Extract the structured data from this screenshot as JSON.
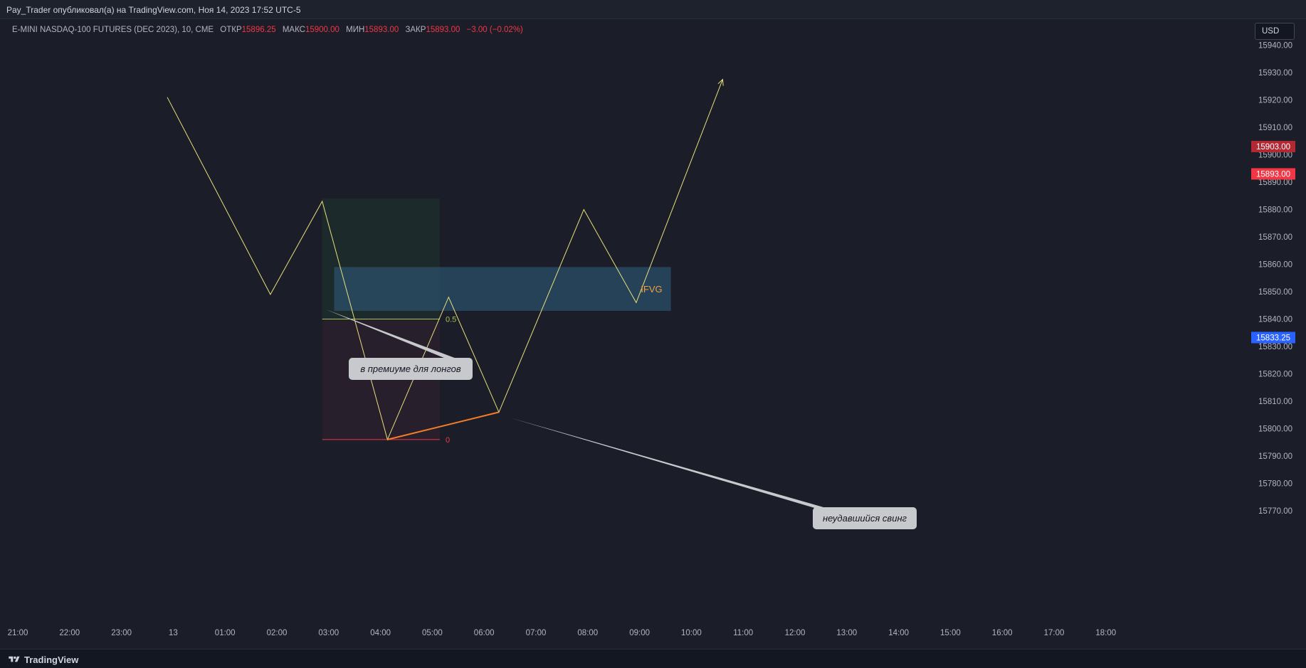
{
  "header": {
    "published_text": "Pay_Trader опубликовал(а) на TradingView.com, Ноя 14, 2023 17:52 UTC-5"
  },
  "legend": {
    "symbol": "E-MINI NASDAQ-100 FUTURES (DEC 2023), 10, CME",
    "open_label": "ОТКР",
    "open_value": "15896.25",
    "high_label": "МАКС",
    "high_value": "15900.00",
    "low_label": "МИН",
    "low_value": "15893.00",
    "close_label": "ЗАКР",
    "close_value": "15893.00",
    "change": "−3.00 (−0.02%)"
  },
  "currency_button": "USD",
  "footer": {
    "brand": "TradingView",
    "logo_icon": "tradingview-logo-icon"
  },
  "colors": {
    "background": "#1b1e28",
    "path_line": "#e8e07a",
    "ifvg_zone": "#2f5a78",
    "premium_zone": "#1f3a2e",
    "discount_zone": "#3a2130",
    "swing_line": "#f57c28",
    "level_0": "#f23645",
    "level_05": "#a5c35b",
    "price_red_dark": "#b22833",
    "price_red": "#f23645",
    "price_blue": "#2962ff"
  },
  "chart_data": {
    "type": "line",
    "y_axis": {
      "ticks": [
        "15940.00",
        "15930.00",
        "15920.00",
        "15910.00",
        "15900.00",
        "15890.00",
        "15880.00",
        "15870.00",
        "15860.00",
        "15850.00",
        "15840.00",
        "15830.00",
        "15820.00",
        "15810.00",
        "15800.00",
        "15790.00",
        "15780.00",
        "15770.00"
      ]
    },
    "x_axis": {
      "ticks": [
        "21:00",
        "22:00",
        "23:00",
        "13",
        "01:00",
        "02:00",
        "03:00",
        "04:00",
        "05:00",
        "06:00",
        "07:00",
        "08:00",
        "09:00",
        "10:00",
        "11:00",
        "12:00",
        "13:00",
        "14:00",
        "15:00",
        "16:00",
        "17:00",
        "18:00"
      ]
    },
    "price_labels": [
      {
        "value": 15903.0,
        "text": "15903.00",
        "color": "#b22833"
      },
      {
        "value": 15893.0,
        "text": "15893.00",
        "color": "#f23645"
      },
      {
        "value": 15833.25,
        "text": "15833.25",
        "color": "#2962ff"
      }
    ],
    "path": [
      {
        "x": 2.94,
        "y": 15921
      },
      {
        "x": 4.93,
        "y": 15849
      },
      {
        "x": 5.93,
        "y": 15883
      },
      {
        "x": 7.19,
        "y": 15796
      },
      {
        "x": 8.37,
        "y": 15848
      },
      {
        "x": 9.34,
        "y": 15806
      },
      {
        "x": 10.98,
        "y": 15880
      },
      {
        "x": 11.99,
        "y": 15846
      },
      {
        "x": 13.66,
        "y": 15927.5
      }
    ],
    "ifvg_zone": {
      "x_start": 6.16,
      "x_end": 12.66,
      "y_top": 15859,
      "y_bottom": 15843,
      "label": "IFVG"
    },
    "fib": {
      "x_start": 5.93,
      "x_end": 8.2,
      "y_top": 15884,
      "y_05": 15840,
      "y_0": 15796,
      "label_05": "0.5",
      "label_0": "0"
    },
    "swing_line": {
      "x1": 7.19,
      "y1": 15796,
      "x2": 9.34,
      "y2": 15806
    },
    "annotations": [
      {
        "text": "в премиуме для лонгов",
        "pointer_x": 6.0,
        "pointer_y": 15843.5
      },
      {
        "text": "неудавшийся свинг",
        "pointer_x": 9.55,
        "pointer_y": 15804
      }
    ]
  }
}
